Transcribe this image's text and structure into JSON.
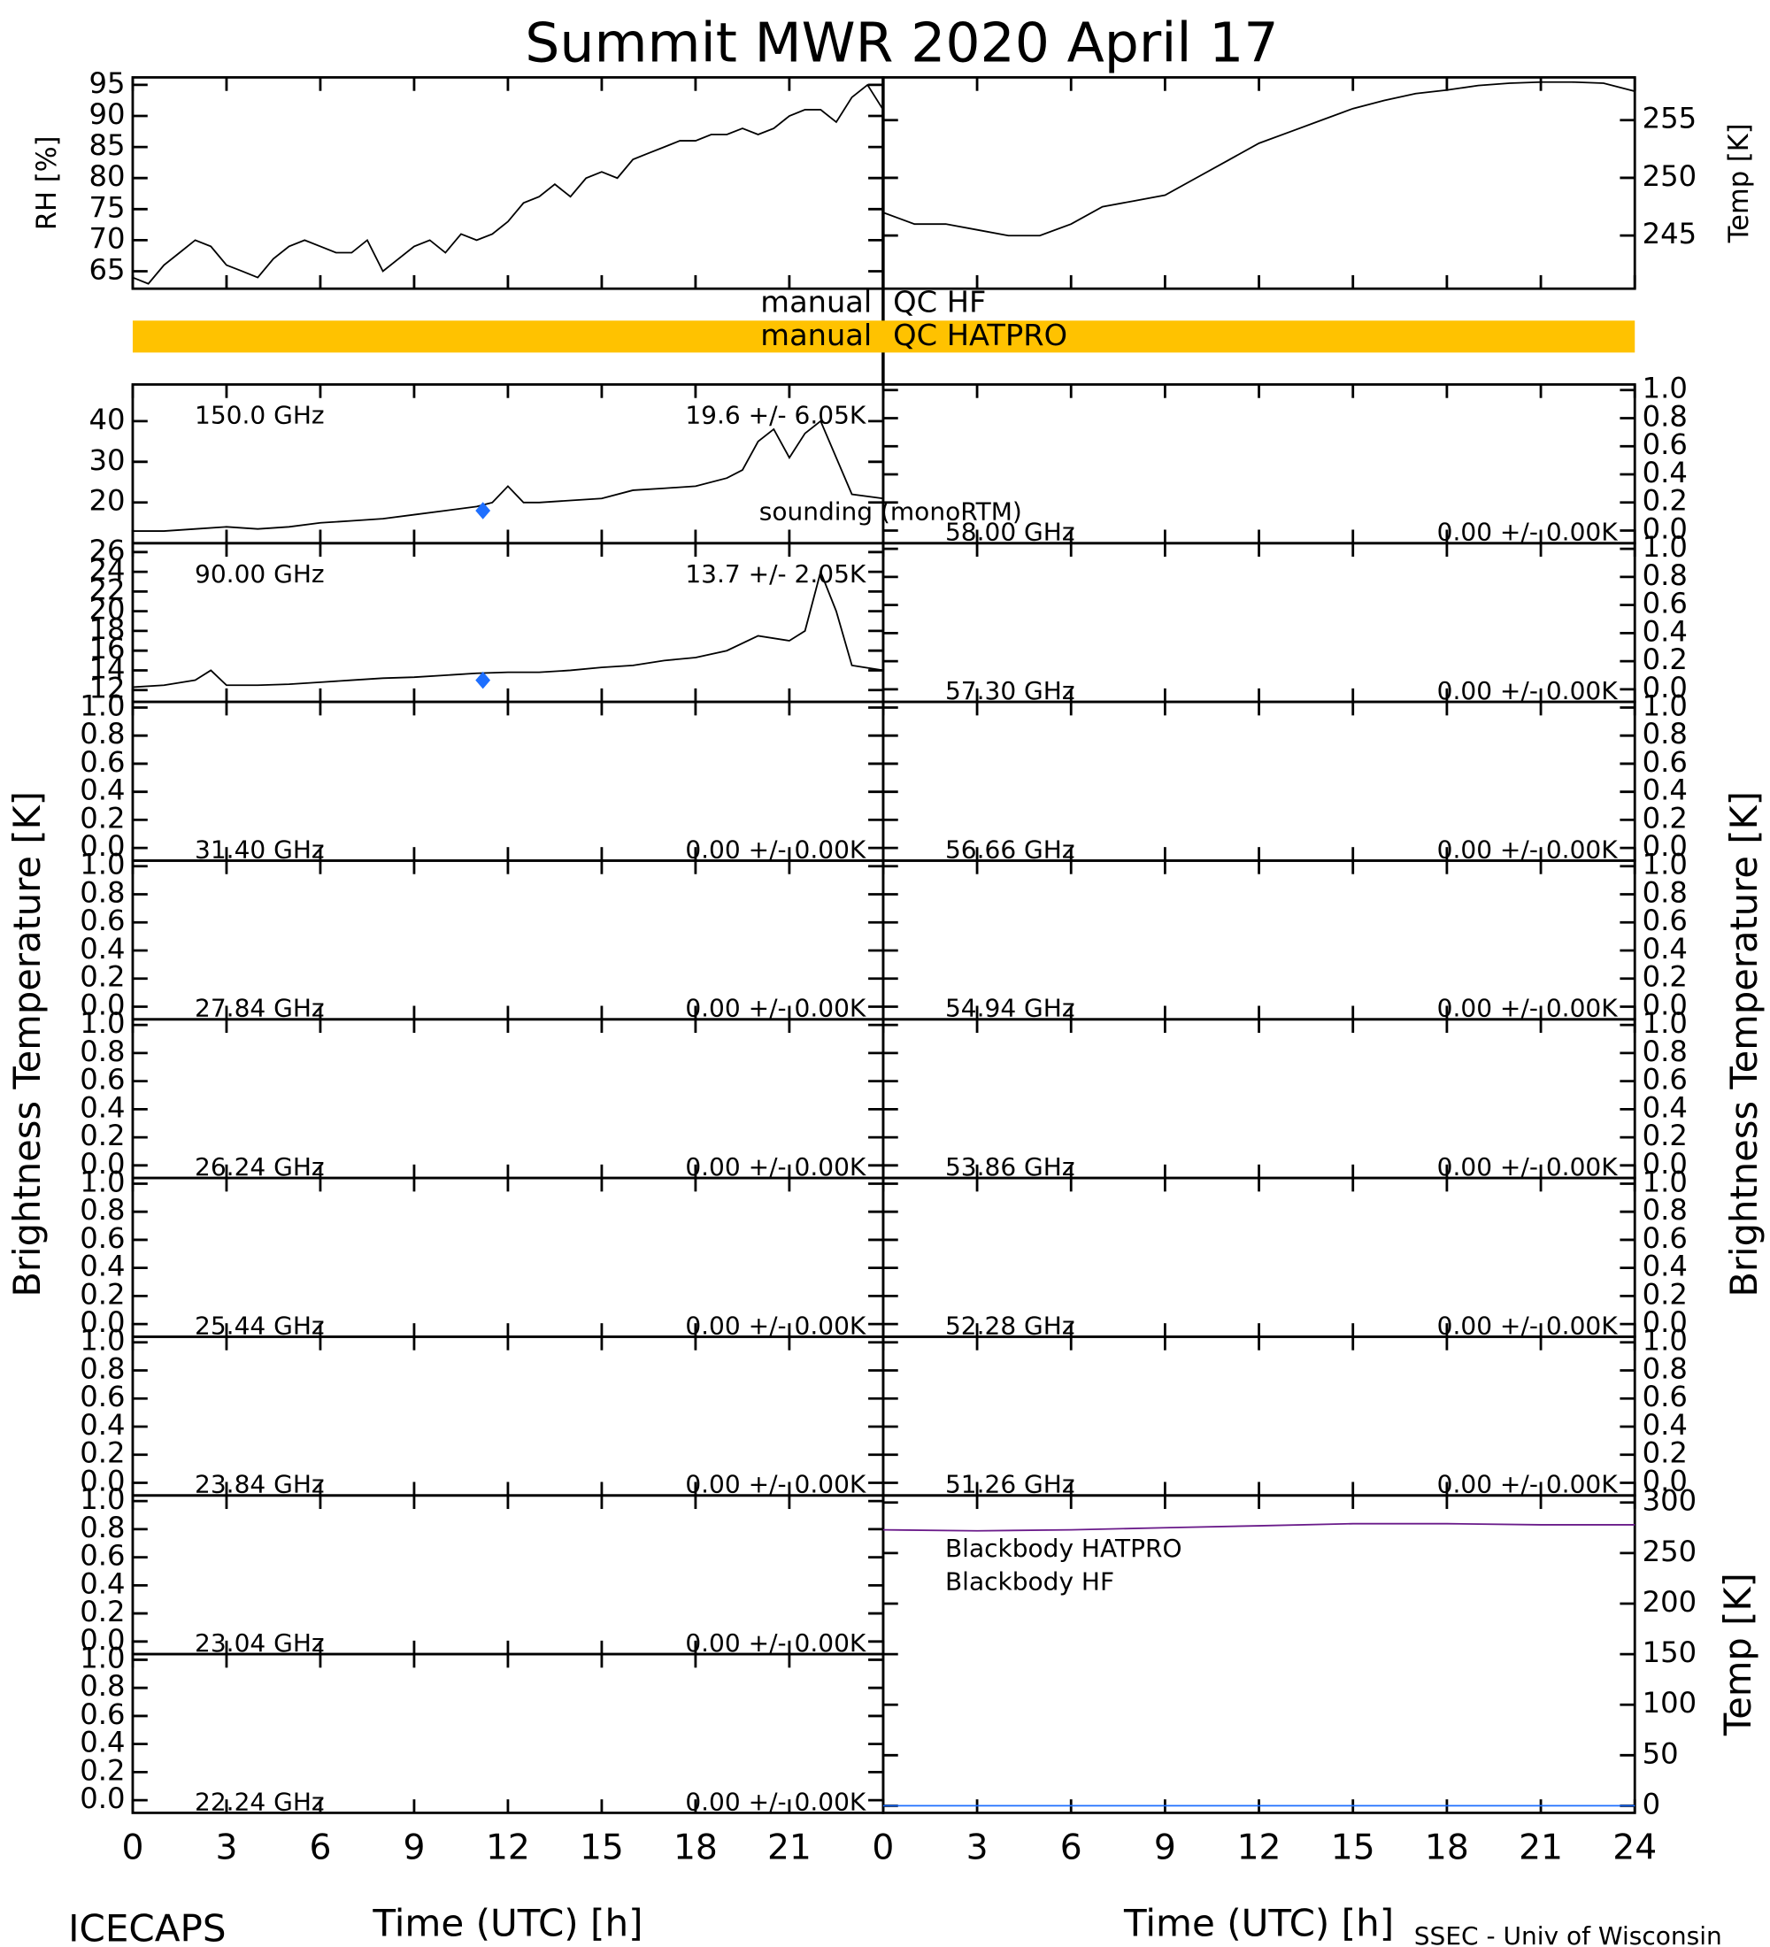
{
  "header": {
    "title": "Summit MWR 2020 April 17",
    "footer_left": "ICECAPS",
    "footer_right": "SSEC - Univ of Wisconsin",
    "left_label": "Brightness Temperature [K]",
    "right_label": "Brightness Temperature [K]",
    "qc": [
      {
        "prefix": "manual",
        "label": "QC HF"
      },
      {
        "prefix": "manual",
        "label": "QC HATPRO",
        "color": "#ffc200"
      }
    ]
  },
  "chart_data": [
    {
      "type": "line",
      "ylabel": "RH [%]",
      "xlim": [
        0,
        24
      ],
      "xticks": [
        0,
        3,
        6,
        9,
        12,
        15,
        18,
        21,
        24
      ],
      "ylim": [
        62.2,
        96.2
      ],
      "yticks": [
        65,
        70,
        75,
        80,
        85,
        90,
        95
      ],
      "series": [
        {
          "color": "#000000",
          "x": [
            0,
            0.5,
            1,
            1.5,
            2,
            2.5,
            3,
            3.5,
            4,
            4.5,
            5,
            5.5,
            6,
            6.5,
            7,
            7.5,
            8,
            8.5,
            9,
            9.5,
            10,
            10.5,
            11,
            11.5,
            12,
            12.5,
            13,
            13.5,
            14,
            14.5,
            15,
            15.5,
            16,
            16.5,
            17,
            17.5,
            18,
            18.5,
            19,
            19.5,
            20,
            20.5,
            21,
            21.5,
            22,
            22.5,
            23,
            23.5,
            24
          ],
          "values": [
            64,
            63,
            66,
            68,
            70,
            69,
            66,
            65,
            64,
            67,
            69,
            70,
            69,
            68,
            68,
            70,
            65,
            67,
            69,
            70,
            68,
            71,
            70,
            71,
            73,
            76,
            77,
            79,
            77,
            80,
            81,
            80,
            83,
            84,
            85,
            86,
            86,
            87,
            87,
            88,
            87,
            88,
            90,
            91,
            91,
            89,
            93,
            95,
            91
          ]
        }
      ]
    },
    {
      "type": "line",
      "ylabel": "Temp [K]",
      "xlim": [
        0,
        24
      ],
      "xticks": [
        0,
        3,
        6,
        9,
        12,
        15,
        18,
        21,
        24
      ],
      "ylim": [
        240.4,
        258.7
      ],
      "yticks": [
        245,
        250,
        255
      ],
      "series": [
        {
          "color": "#000000",
          "x": [
            0,
            1,
            2,
            3,
            4,
            5,
            6,
            7,
            8,
            9,
            10,
            11,
            12,
            13,
            14,
            15,
            16,
            17,
            18,
            19,
            20,
            21,
            22,
            23,
            24
          ],
          "values": [
            247,
            246,
            246,
            245.5,
            245,
            245,
            246,
            247.5,
            248,
            248.5,
            250,
            251.5,
            253,
            254,
            255,
            256,
            256.7,
            257.3,
            257.6,
            258,
            258.2,
            258.3,
            258.3,
            258.2,
            257.5
          ]
        }
      ]
    },
    {
      "type": "line",
      "label": "150.0 GHz",
      "stats": "19.6 +/- 6.05K",
      "xlim": [
        0,
        24
      ],
      "xticks": [
        0,
        3,
        6,
        9,
        12,
        15,
        18,
        21,
        24
      ],
      "ylim": [
        10,
        49
      ],
      "yticks": [
        20,
        30,
        40
      ],
      "series": [
        {
          "color": "#000000",
          "x": [
            0,
            1,
            2,
            3,
            4,
            5,
            6,
            7,
            8,
            9,
            10,
            11,
            11.5,
            12,
            12.5,
            13,
            14,
            15,
            16,
            17,
            18,
            19,
            19.5,
            20,
            20.5,
            21,
            21.5,
            22,
            22.5,
            23,
            24
          ],
          "values": [
            13,
            13,
            13.5,
            14,
            13.5,
            14,
            15,
            15.5,
            16,
            17,
            18,
            19,
            20,
            24,
            20,
            20,
            20.5,
            21,
            23,
            23.5,
            24,
            26,
            28,
            35,
            38,
            31,
            37,
            40,
            31,
            22,
            21
          ]
        }
      ],
      "sounding": {
        "name": "sounding (monoRTM)",
        "color": "#1e6fff",
        "x": [
          11.2
        ],
        "values": [
          18
        ]
      }
    },
    {
      "type": "line",
      "label": "90.00 GHz",
      "stats": "13.7 +/- 2.05K",
      "xlim": [
        0,
        24
      ],
      "xticks": [
        0,
        3,
        6,
        9,
        12,
        15,
        18,
        21,
        24
      ],
      "ylim": [
        10.8,
        26.9
      ],
      "yticks": [
        12,
        14,
        16,
        18,
        20,
        22,
        24,
        26
      ],
      "series": [
        {
          "color": "#000000",
          "x": [
            0,
            1,
            2,
            2.5,
            3,
            4,
            5,
            6,
            7,
            8,
            9,
            10,
            11,
            12,
            13,
            14,
            15,
            16,
            17,
            18,
            19,
            20,
            21,
            21.5,
            22,
            22.5,
            23,
            24
          ],
          "values": [
            12.3,
            12.5,
            13,
            14,
            12.5,
            12.5,
            12.6,
            12.8,
            13,
            13.2,
            13.3,
            13.5,
            13.7,
            13.8,
            13.8,
            14,
            14.3,
            14.5,
            15,
            15.3,
            16,
            17.5,
            17,
            18,
            24,
            20,
            14.5,
            14
          ]
        }
      ],
      "sounding": {
        "color": "#1e6fff",
        "x": [
          11.2
        ],
        "values": [
          13
        ]
      }
    },
    {
      "type": "line",
      "label": "31.40 GHz",
      "stats": "0.00 +/- 0.00K",
      "xlim": [
        0,
        24
      ],
      "xticks": [
        0,
        3,
        6,
        9,
        12,
        15,
        18,
        21,
        24
      ],
      "ylim": [
        -0.09,
        1.04
      ],
      "yticks": [
        {
          "value": 0,
          "label": "0.0"
        },
        {
          "value": 0.2,
          "label": "0.2"
        },
        {
          "value": 0.4,
          "label": "0.4"
        },
        {
          "value": 0.6,
          "label": "0.6"
        },
        {
          "value": 0.8,
          "label": "0.8"
        },
        {
          "value": 1,
          "label": "1.0"
        }
      ]
    },
    {
      "type": "line",
      "label": "27.84 GHz",
      "stats": "0.00 +/- 0.00K",
      "xlim": [
        0,
        24
      ],
      "xticks": [
        0,
        3,
        6,
        9,
        12,
        15,
        18,
        21,
        24
      ],
      "ylim": [
        -0.09,
        1.04
      ],
      "yticks": [
        {
          "value": 0,
          "label": "0.0"
        },
        {
          "value": 0.2,
          "label": "0.2"
        },
        {
          "value": 0.4,
          "label": "0.4"
        },
        {
          "value": 0.6,
          "label": "0.6"
        },
        {
          "value": 0.8,
          "label": "0.8"
        },
        {
          "value": 1,
          "label": "1.0"
        }
      ]
    },
    {
      "type": "line",
      "label": "26.24 GHz",
      "stats": "0.00 +/- 0.00K",
      "xlim": [
        0,
        24
      ],
      "xticks": [
        0,
        3,
        6,
        9,
        12,
        15,
        18,
        21,
        24
      ],
      "ylim": [
        -0.09,
        1.04
      ],
      "yticks": [
        {
          "value": 0,
          "label": "0.0"
        },
        {
          "value": 0.2,
          "label": "0.2"
        },
        {
          "value": 0.4,
          "label": "0.4"
        },
        {
          "value": 0.6,
          "label": "0.6"
        },
        {
          "value": 0.8,
          "label": "0.8"
        },
        {
          "value": 1,
          "label": "1.0"
        }
      ]
    },
    {
      "type": "line",
      "label": "25.44 GHz",
      "stats": "0.00 +/- 0.00K",
      "xlim": [
        0,
        24
      ],
      "xticks": [
        0,
        3,
        6,
        9,
        12,
        15,
        18,
        21,
        24
      ],
      "ylim": [
        -0.09,
        1.04
      ],
      "yticks": [
        {
          "value": 0,
          "label": "0.0"
        },
        {
          "value": 0.2,
          "label": "0.2"
        },
        {
          "value": 0.4,
          "label": "0.4"
        },
        {
          "value": 0.6,
          "label": "0.6"
        },
        {
          "value": 0.8,
          "label": "0.8"
        },
        {
          "value": 1,
          "label": "1.0"
        }
      ]
    },
    {
      "type": "line",
      "label": "23.84 GHz",
      "stats": "0.00 +/- 0.00K",
      "xlim": [
        0,
        24
      ],
      "xticks": [
        0,
        3,
        6,
        9,
        12,
        15,
        18,
        21,
        24
      ],
      "ylim": [
        -0.09,
        1.04
      ],
      "yticks": [
        {
          "value": 0,
          "label": "0.0"
        },
        {
          "value": 0.2,
          "label": "0.2"
        },
        {
          "value": 0.4,
          "label": "0.4"
        },
        {
          "value": 0.6,
          "label": "0.6"
        },
        {
          "value": 0.8,
          "label": "0.8"
        },
        {
          "value": 1,
          "label": "1.0"
        }
      ]
    },
    {
      "type": "line",
      "label": "23.04 GHz",
      "stats": "0.00 +/- 0.00K",
      "xlim": [
        0,
        24
      ],
      "xticks": [
        0,
        3,
        6,
        9,
        12,
        15,
        18,
        21,
        24
      ],
      "ylim": [
        -0.09,
        1.04
      ],
      "yticks": [
        {
          "value": 0,
          "label": "0.0"
        },
        {
          "value": 0.2,
          "label": "0.2"
        },
        {
          "value": 0.4,
          "label": "0.4"
        },
        {
          "value": 0.6,
          "label": "0.6"
        },
        {
          "value": 0.8,
          "label": "0.8"
        },
        {
          "value": 1,
          "label": "1.0"
        }
      ]
    },
    {
      "type": "line",
      "label": "22.24 GHz",
      "stats": "0.00 +/- 0.00K",
      "xlabel": "Time (UTC) [h]",
      "xlim": [
        0,
        24
      ],
      "xticks": [
        0,
        3,
        6,
        9,
        12,
        15,
        18,
        21
      ],
      "ylim": [
        -0.09,
        1.04
      ],
      "yticks": [
        {
          "value": 0,
          "label": "0.0"
        },
        {
          "value": 0.2,
          "label": "0.2"
        },
        {
          "value": 0.4,
          "label": "0.4"
        },
        {
          "value": 0.6,
          "label": "0.6"
        },
        {
          "value": 0.8,
          "label": "0.8"
        },
        {
          "value": 1,
          "label": "1.0"
        }
      ]
    },
    {
      "type": "line",
      "label": "58.00 GHz",
      "stats": "0.00 +/- 0.00K",
      "xlim": [
        0,
        24
      ],
      "xticks": [
        0,
        3,
        6,
        9,
        12,
        15,
        18,
        21,
        24
      ],
      "ylim": [
        -0.09,
        1.04
      ],
      "yticks": [
        {
          "value": 0,
          "label": "0.0"
        },
        {
          "value": 0.2,
          "label": "0.2"
        },
        {
          "value": 0.4,
          "label": "0.4"
        },
        {
          "value": 0.6,
          "label": "0.6"
        },
        {
          "value": 0.8,
          "label": "0.8"
        },
        {
          "value": 1,
          "label": "1.0"
        }
      ]
    },
    {
      "type": "line",
      "label": "57.30 GHz",
      "stats": "0.00 +/- 0.00K",
      "xlim": [
        0,
        24
      ],
      "xticks": [
        0,
        3,
        6,
        9,
        12,
        15,
        18,
        21,
        24
      ],
      "ylim": [
        -0.09,
        1.04
      ],
      "yticks": [
        {
          "value": 0,
          "label": "0.0"
        },
        {
          "value": 0.2,
          "label": "0.2"
        },
        {
          "value": 0.4,
          "label": "0.4"
        },
        {
          "value": 0.6,
          "label": "0.6"
        },
        {
          "value": 0.8,
          "label": "0.8"
        },
        {
          "value": 1,
          "label": "1.0"
        }
      ]
    },
    {
      "type": "line",
      "label": "56.66 GHz",
      "stats": "0.00 +/- 0.00K",
      "xlim": [
        0,
        24
      ],
      "xticks": [
        0,
        3,
        6,
        9,
        12,
        15,
        18,
        21,
        24
      ],
      "ylim": [
        -0.09,
        1.04
      ],
      "yticks": [
        {
          "value": 0,
          "label": "0.0"
        },
        {
          "value": 0.2,
          "label": "0.2"
        },
        {
          "value": 0.4,
          "label": "0.4"
        },
        {
          "value": 0.6,
          "label": "0.6"
        },
        {
          "value": 0.8,
          "label": "0.8"
        },
        {
          "value": 1,
          "label": "1.0"
        }
      ]
    },
    {
      "type": "line",
      "label": "54.94 GHz",
      "stats": "0.00 +/- 0.00K",
      "xlim": [
        0,
        24
      ],
      "xticks": [
        0,
        3,
        6,
        9,
        12,
        15,
        18,
        21,
        24
      ],
      "ylim": [
        -0.09,
        1.04
      ],
      "yticks": [
        {
          "value": 0,
          "label": "0.0"
        },
        {
          "value": 0.2,
          "label": "0.2"
        },
        {
          "value": 0.4,
          "label": "0.4"
        },
        {
          "value": 0.6,
          "label": "0.6"
        },
        {
          "value": 0.8,
          "label": "0.8"
        },
        {
          "value": 1,
          "label": "1.0"
        }
      ]
    },
    {
      "type": "line",
      "label": "53.86 GHz",
      "stats": "0.00 +/- 0.00K",
      "xlim": [
        0,
        24
      ],
      "xticks": [
        0,
        3,
        6,
        9,
        12,
        15,
        18,
        21,
        24
      ],
      "ylim": [
        -0.09,
        1.04
      ],
      "yticks": [
        {
          "value": 0,
          "label": "0.0"
        },
        {
          "value": 0.2,
          "label": "0.2"
        },
        {
          "value": 0.4,
          "label": "0.4"
        },
        {
          "value": 0.6,
          "label": "0.6"
        },
        {
          "value": 0.8,
          "label": "0.8"
        },
        {
          "value": 1,
          "label": "1.0"
        }
      ]
    },
    {
      "type": "line",
      "label": "52.28 GHz",
      "stats": "0.00 +/- 0.00K",
      "xlim": [
        0,
        24
      ],
      "xticks": [
        0,
        3,
        6,
        9,
        12,
        15,
        18,
        21,
        24
      ],
      "ylim": [
        -0.09,
        1.04
      ],
      "yticks": [
        {
          "value": 0,
          "label": "0.0"
        },
        {
          "value": 0.2,
          "label": "0.2"
        },
        {
          "value": 0.4,
          "label": "0.4"
        },
        {
          "value": 0.6,
          "label": "0.6"
        },
        {
          "value": 0.8,
          "label": "0.8"
        },
        {
          "value": 1,
          "label": "1.0"
        }
      ]
    },
    {
      "type": "line",
      "label": "51.26 GHz",
      "stats": "0.00 +/- 0.00K",
      "xlim": [
        0,
        24
      ],
      "xticks": [
        0,
        3,
        6,
        9,
        12,
        15,
        18,
        21,
        24
      ],
      "ylim": [
        -0.09,
        1.04
      ],
      "yticks": [
        {
          "value": 0,
          "label": "0.0"
        },
        {
          "value": 0.2,
          "label": "0.2"
        },
        {
          "value": 0.4,
          "label": "0.4"
        },
        {
          "value": 0.6,
          "label": "0.6"
        },
        {
          "value": 0.8,
          "label": "0.8"
        },
        {
          "value": 1,
          "label": "1.0"
        }
      ]
    },
    {
      "type": "line",
      "ylabel": "Temp [K]",
      "xlabel": "Time (UTC) [h]",
      "xlim": [
        0,
        24
      ],
      "xticks": [
        0,
        3,
        6,
        9,
        12,
        15,
        18,
        21,
        24
      ],
      "ylim": [
        -7,
        307
      ],
      "yticks": [
        0,
        50,
        100,
        150,
        200,
        250,
        300
      ],
      "series": [
        {
          "name": "Blackbody HATPRO",
          "color": "#1e6fff",
          "x": [
            0,
            24
          ],
          "values": [
            0,
            0
          ]
        },
        {
          "name": "Blackbody HF",
          "color": "#6a1b8a",
          "x": [
            0,
            3,
            6,
            9,
            12,
            15,
            18,
            21,
            24
          ],
          "values": [
            273,
            272,
            273,
            275,
            277,
            279,
            279,
            278,
            278
          ]
        }
      ]
    }
  ]
}
